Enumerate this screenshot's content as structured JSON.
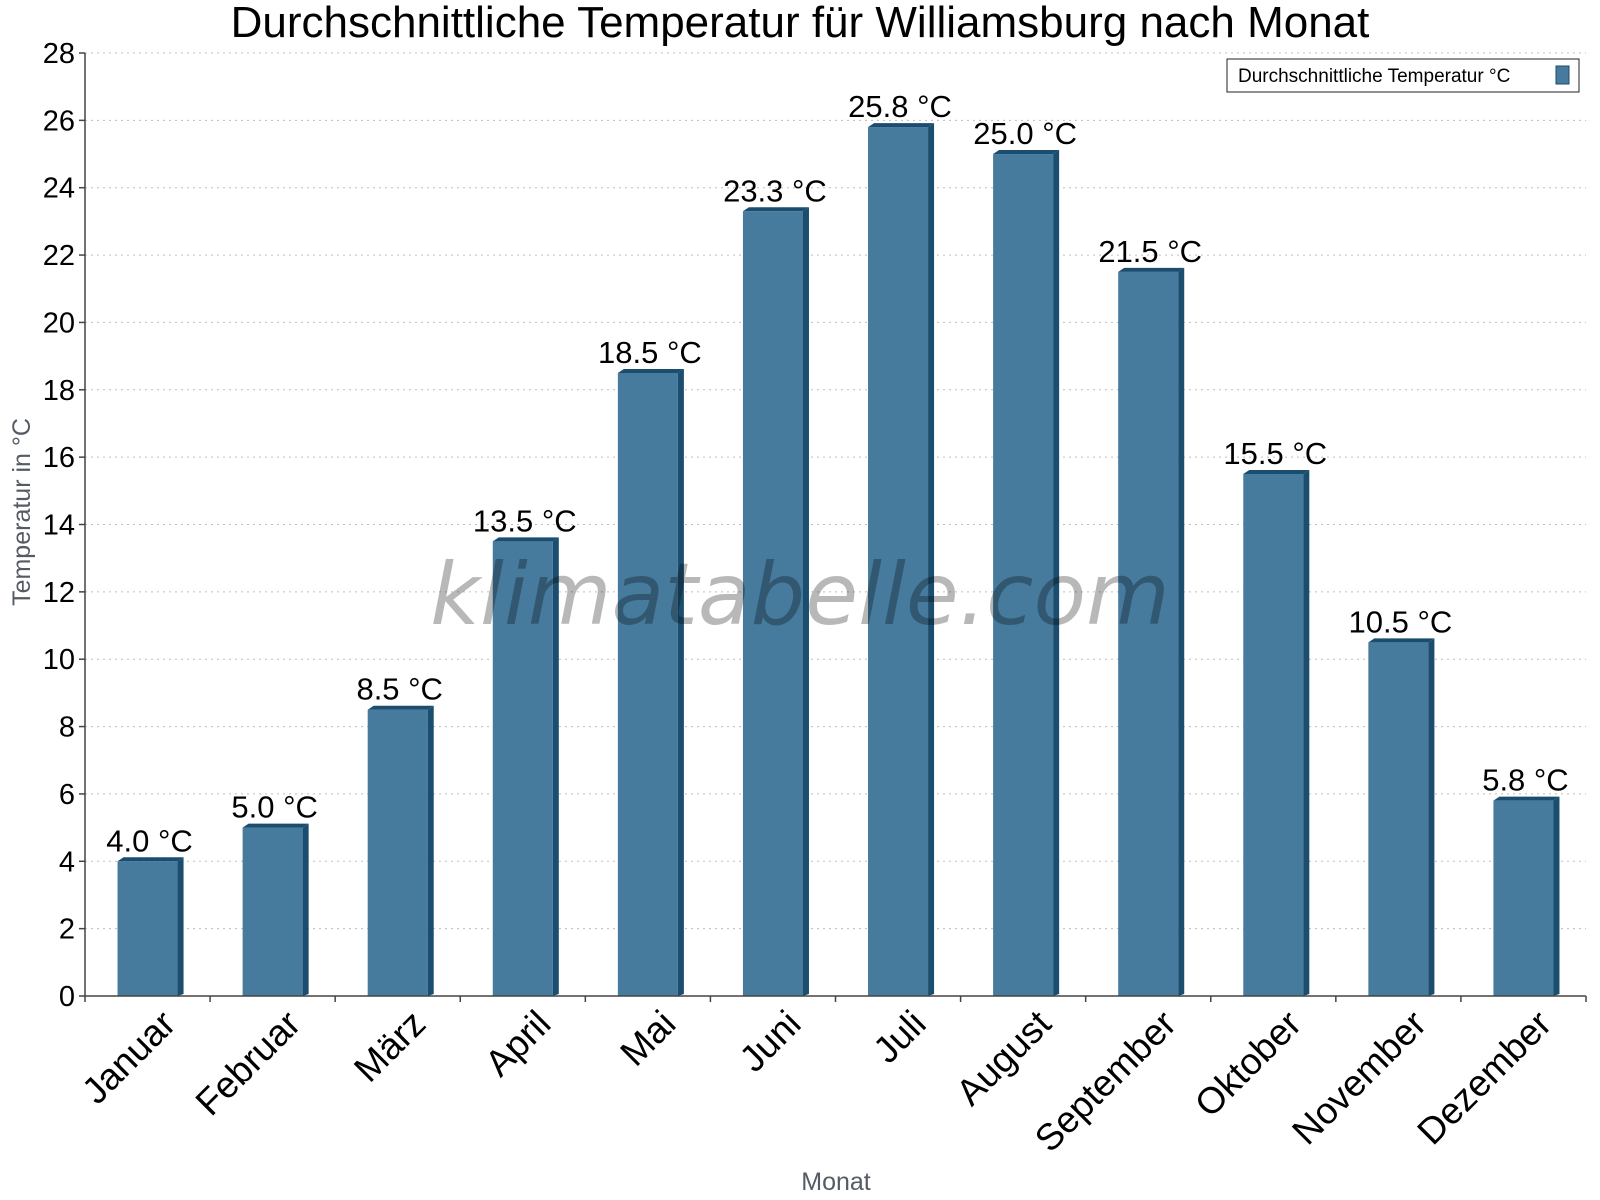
{
  "watermark": "klimatabelle.com",
  "chart_data": {
    "type": "bar",
    "title": "Durchschnittliche Temperatur für Williamsburg nach Monat",
    "xlabel": "Monat",
    "ylabel": "Temperatur in °C",
    "ylim": [
      0,
      28
    ],
    "yticks": [
      0,
      2,
      4,
      6,
      8,
      10,
      12,
      14,
      16,
      18,
      20,
      22,
      24,
      26,
      28
    ],
    "grid": true,
    "legend_position": "top-right",
    "categories": [
      "Januar",
      "Februar",
      "März",
      "April",
      "Mai",
      "Juni",
      "Juli",
      "August",
      "September",
      "Oktober",
      "November",
      "Dezember"
    ],
    "series": [
      {
        "name": "Durchschnittliche Temperatur °C",
        "values": [
          4.0,
          5.0,
          8.5,
          13.5,
          18.5,
          23.3,
          25.8,
          25.0,
          21.5,
          15.5,
          10.5,
          5.8
        ],
        "labels": [
          "4.0 °C",
          "5.0 °C",
          "8.5 °C",
          "13.5 °C",
          "18.5 °C",
          "23.3 °C",
          "25.8 °C",
          "25.0 °C",
          "21.5 °C",
          "15.5 °C",
          "10.5 °C",
          "5.8 °C"
        ],
        "color": "#467b9d",
        "shade_color": "#1b4d6e"
      }
    ]
  }
}
